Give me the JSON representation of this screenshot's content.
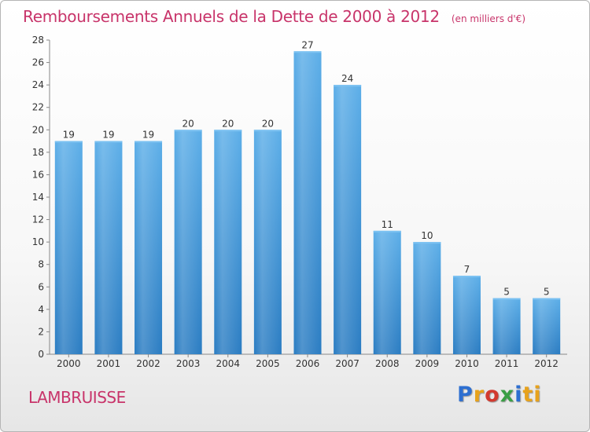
{
  "header": {
    "title": "Remboursements Annuels de la Dette de 2000 à 2012",
    "subtitle": "(en milliers d'€)"
  },
  "footer": {
    "town": "LAMBRUISSE",
    "logo": [
      "P",
      "r",
      "o",
      "x",
      "i",
      "ti"
    ]
  },
  "colors": {
    "bar_top": "#5caee8",
    "bar_bottom": "#2a7cc2",
    "title": "#c8346a"
  },
  "chart_data": {
    "type": "bar",
    "categories": [
      "2000",
      "2001",
      "2002",
      "2003",
      "2004",
      "2005",
      "2006",
      "2007",
      "2008",
      "2009",
      "2010",
      "2011",
      "2012"
    ],
    "values": [
      19,
      19,
      19,
      20,
      20,
      20,
      27,
      24,
      11,
      10,
      7,
      5,
      5
    ],
    "title": "Remboursements Annuels de la Dette de 2000 à 2012",
    "subtitle": "(en milliers d'€)",
    "xlabel": "",
    "ylabel": "",
    "ylim": [
      0,
      28
    ],
    "yticks": [
      0,
      2,
      4,
      6,
      8,
      10,
      12,
      14,
      16,
      18,
      20,
      22,
      24,
      26,
      28
    ],
    "grid": false,
    "data_labels": true
  }
}
